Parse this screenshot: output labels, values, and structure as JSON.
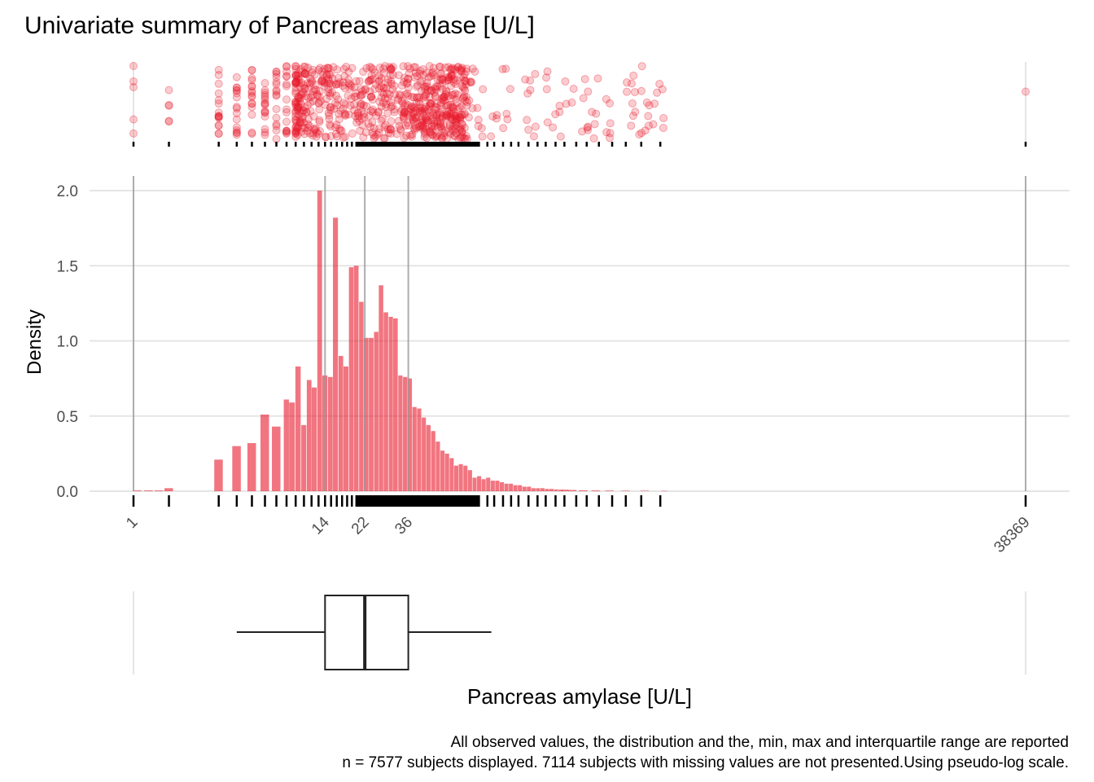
{
  "chart_data": {
    "type": "histogram",
    "title": "Univariate summary of Pancreas amylase [U/L]",
    "xlabel": "Pancreas amylase [U/L]",
    "ylabel": "Density",
    "x_scale": "pseudo-log",
    "xlim": [
      1,
      38369
    ],
    "ylim": [
      0,
      2.0
    ],
    "y_ticks": [
      {
        "value": 0,
        "label": "0.0"
      },
      {
        "value": 0.5,
        "label": "0.5"
      },
      {
        "value": 1.0,
        "label": "1.0"
      },
      {
        "value": 1.5,
        "label": "1.5"
      },
      {
        "value": 2.0,
        "label": "2.0"
      }
    ],
    "x_ticks": [
      {
        "value": 1,
        "label": "1"
      },
      {
        "value": 14,
        "label": "14"
      },
      {
        "value": 22,
        "label": "22"
      },
      {
        "value": 36,
        "label": "36"
      },
      {
        "value": 38369,
        "label": "38369"
      }
    ],
    "summary_stats": {
      "min": 1,
      "q1": 14,
      "median": 22,
      "q3": 36,
      "max": 38369
    },
    "boxplot": {
      "whisker_low": 5,
      "q1": 14,
      "median": 22,
      "q3": 36,
      "whisker_high": 92
    },
    "histogram": {
      "bins": [
        {
          "x": 1.1,
          "density": 0.005
        },
        {
          "x": 1.4,
          "density": 0.005
        },
        {
          "x": 1.7,
          "density": 0.005
        },
        {
          "x": 2.0,
          "density": 0.02
        },
        {
          "x": 4.0,
          "density": 0.21
        },
        {
          "x": 5.0,
          "density": 0.3
        },
        {
          "x": 6.0,
          "density": 0.32
        },
        {
          "x": 7.0,
          "density": 0.51
        },
        {
          "x": 8.0,
          "density": 0.43
        },
        {
          "x": 9.0,
          "density": 0.61
        },
        {
          "x": 9.6,
          "density": 0.59
        },
        {
          "x": 10.3,
          "density": 0.83
        },
        {
          "x": 11.0,
          "density": 0.44
        },
        {
          "x": 11.7,
          "density": 0.74
        },
        {
          "x": 12.4,
          "density": 0.69
        },
        {
          "x": 13.2,
          "density": 2.0
        },
        {
          "x": 14.0,
          "density": 0.77
        },
        {
          "x": 14.9,
          "density": 0.76
        },
        {
          "x": 15.8,
          "density": 1.82
        },
        {
          "x": 16.8,
          "density": 0.9
        },
        {
          "x": 17.8,
          "density": 0.83
        },
        {
          "x": 18.9,
          "density": 1.49
        },
        {
          "x": 20.0,
          "density": 1.5
        },
        {
          "x": 21.2,
          "density": 1.26
        },
        {
          "x": 22.4,
          "density": 1.02
        },
        {
          "x": 23.7,
          "density": 1.02
        },
        {
          "x": 25.1,
          "density": 1.06
        },
        {
          "x": 26.5,
          "density": 1.37
        },
        {
          "x": 28.0,
          "density": 1.19
        },
        {
          "x": 29.6,
          "density": 1.16
        },
        {
          "x": 31.2,
          "density": 1.15
        },
        {
          "x": 33.0,
          "density": 0.77
        },
        {
          "x": 34.8,
          "density": 0.76
        },
        {
          "x": 36.7,
          "density": 0.75
        },
        {
          "x": 38.7,
          "density": 0.56
        },
        {
          "x": 40.8,
          "density": 0.55
        },
        {
          "x": 43.0,
          "density": 0.49
        },
        {
          "x": 45.3,
          "density": 0.44
        },
        {
          "x": 47.8,
          "density": 0.4
        },
        {
          "x": 50.4,
          "density": 0.33
        },
        {
          "x": 53.1,
          "density": 0.27
        },
        {
          "x": 55.9,
          "density": 0.25
        },
        {
          "x": 58.9,
          "density": 0.22
        },
        {
          "x": 62.0,
          "density": 0.17
        },
        {
          "x": 65.3,
          "density": 0.18
        },
        {
          "x": 68.8,
          "density": 0.17
        },
        {
          "x": 72.4,
          "density": 0.14
        },
        {
          "x": 76.3,
          "density": 0.09
        },
        {
          "x": 80.3,
          "density": 0.1
        },
        {
          "x": 84.5,
          "density": 0.08
        },
        {
          "x": 89.0,
          "density": 0.09
        },
        {
          "x": 93.7,
          "density": 0.07
        },
        {
          "x": 98.6,
          "density": 0.07
        },
        {
          "x": 103.8,
          "density": 0.06
        },
        {
          "x": 109.3,
          "density": 0.05
        },
        {
          "x": 115.0,
          "density": 0.05
        },
        {
          "x": 121.0,
          "density": 0.04
        },
        {
          "x": 127.3,
          "density": 0.04
        },
        {
          "x": 134.0,
          "density": 0.03
        },
        {
          "x": 141.0,
          "density": 0.03
        },
        {
          "x": 148.4,
          "density": 0.02
        },
        {
          "x": 156.2,
          "density": 0.02
        },
        {
          "x": 164.3,
          "density": 0.02
        },
        {
          "x": 172.9,
          "density": 0.015
        },
        {
          "x": 181.9,
          "density": 0.015
        },
        {
          "x": 191.4,
          "density": 0.012
        },
        {
          "x": 201.4,
          "density": 0.01
        },
        {
          "x": 211.9,
          "density": 0.01
        },
        {
          "x": 230.0,
          "density": 0.008
        },
        {
          "x": 260.0,
          "density": 0.006
        },
        {
          "x": 300.0,
          "density": 0.005
        },
        {
          "x": 350.0,
          "density": 0.004
        },
        {
          "x": 420.0,
          "density": 0.003
        },
        {
          "x": 520.0,
          "density": 0.003
        },
        {
          "x": 650.0,
          "density": 0.002
        }
      ]
    },
    "observed_values": [
      1,
      2,
      4,
      5,
      6,
      7,
      8,
      9,
      10,
      11,
      12,
      13,
      14,
      15,
      16,
      17,
      18,
      19,
      20,
      22,
      24,
      26,
      28,
      30,
      33,
      36,
      40,
      45,
      50,
      55,
      60,
      66,
      72,
      80,
      88,
      95,
      105,
      115,
      125,
      140,
      155,
      170,
      190,
      210,
      240,
      270,
      310,
      360,
      420,
      500,
      620,
      38369
    ],
    "footnote": [
      "All observed values, the distribution and the, min, max and interquartile range are reported",
      "n = 7577 subjects displayed. 7114 subjects with missing values are not presented.Using pseudo-log scale."
    ],
    "colors": {
      "fill": "#e8192b",
      "line": "#000000",
      "grid": "#e5e5e5",
      "refline": "#aaaaaa"
    }
  }
}
